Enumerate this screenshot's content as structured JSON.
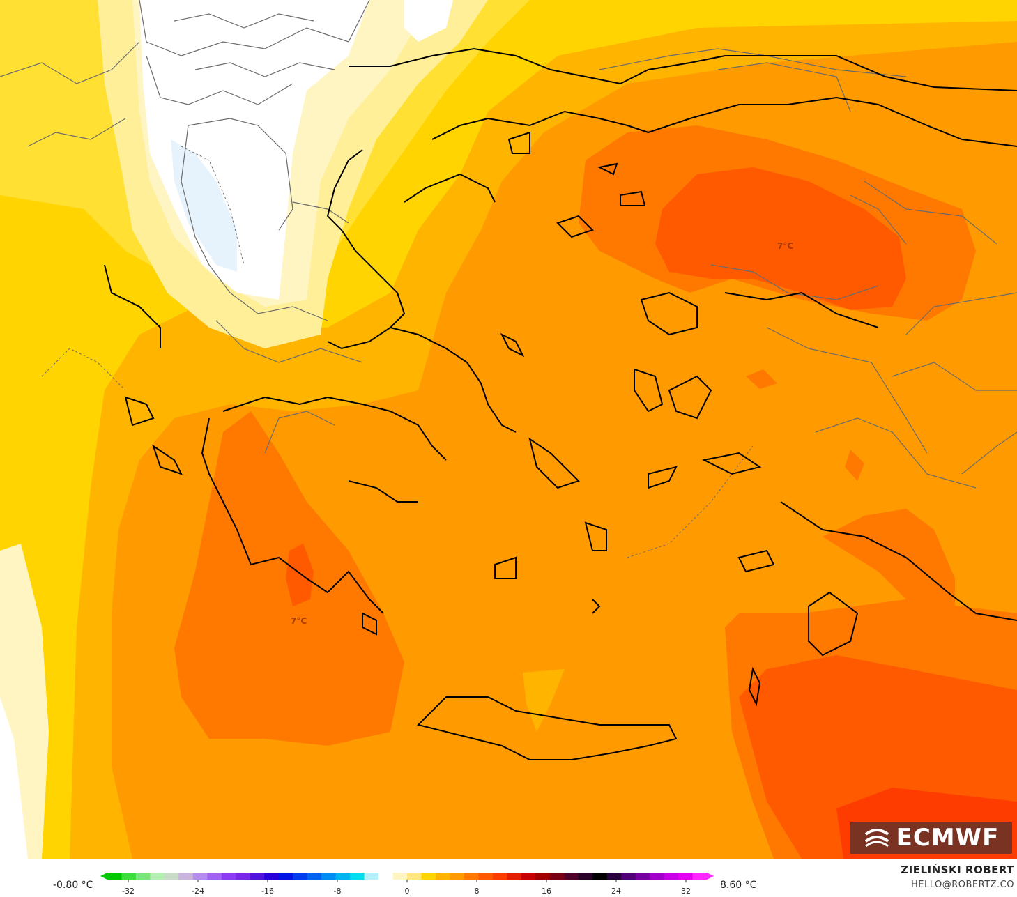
{
  "map": {
    "labels": [
      {
        "id": "aegean-east-temp",
        "text": "7°C"
      },
      {
        "id": "peloponnese-temp",
        "text": "7°C"
      }
    ],
    "colors": {
      "white_zone": "#ffffff",
      "pale_blue": "#e6f3fc",
      "pale_yellow": "#fff5c2",
      "light_yellow": "#ffef99",
      "yellow": "#ffe033",
      "gold": "#ffd400",
      "amber": "#ffb400",
      "orange": "#ff9a00",
      "dark_orange": "#ff7800",
      "red_orange": "#ff5a00"
    }
  },
  "logo": {
    "text": "ECMWF",
    "icon": "ecmwf-logo-icon"
  },
  "legend": {
    "min_label": "-0.80 °C",
    "max_label": "8.60 °C",
    "ticks": [
      "-32",
      "-24",
      "-16",
      "-8",
      "0",
      "8",
      "16",
      "24",
      "32"
    ],
    "colors": [
      "#00c800",
      "#3cdc3c",
      "#78e678",
      "#b4f0b4",
      "#c8dcc8",
      "#c8b4dc",
      "#b48cf0",
      "#a064f0",
      "#8c3cf0",
      "#7828e6",
      "#5014dc",
      "#2800dc",
      "#0014e6",
      "#003cf0",
      "#0064f0",
      "#008cf0",
      "#00b4f0",
      "#00dcf0",
      "#b4f0f8",
      "#ffffff",
      "#fff5c2",
      "#ffe680",
      "#ffd400",
      "#ffb400",
      "#ff9a00",
      "#ff7800",
      "#ff5a00",
      "#ff3c00",
      "#e61e00",
      "#c80000",
      "#a00000",
      "#780014",
      "#500028",
      "#280028",
      "#000000",
      "#28003c",
      "#500078",
      "#7800a0",
      "#a000c8",
      "#c800e6",
      "#e600f0",
      "#ff28ff"
    ],
    "credit_name": "ZIELIŃSKI ROBERT",
    "credit_email": "HELLO@ROBERTZ.CO"
  }
}
